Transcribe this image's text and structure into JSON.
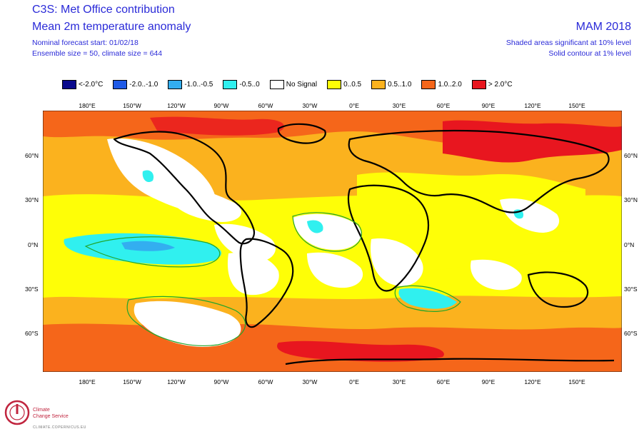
{
  "header": {
    "title": "C3S: Met Office contribution",
    "subtitle": "Mean 2m temperature anomaly",
    "forecast_start": "Nominal forecast start: 01/02/18",
    "ensemble": "Ensemble size = 50, climate size = 644",
    "season": "MAM 2018",
    "shaded_note": "Shaded areas significant at 10% level",
    "contour_note": "Solid contour at 1% level"
  },
  "legend": [
    {
      "label": "<-2.0°C",
      "color": "#0a0a8c"
    },
    {
      "label": "-2.0..-1.0",
      "color": "#1f5ae6"
    },
    {
      "label": "-1.0..-0.5",
      "color": "#33aef0"
    },
    {
      "label": "-0.5..0",
      "color": "#30f0ef"
    },
    {
      "label": "No Signal",
      "color": "#ffffff"
    },
    {
      "label": "0..0.5",
      "color": "#fefe07"
    },
    {
      "label": "0.5..1.0",
      "color": "#fbb21e"
    },
    {
      "label": "1.0..2.0",
      "color": "#f5661a"
    },
    {
      "label": "> 2.0°C",
      "color": "#e8161f"
    }
  ],
  "longitudes": [
    "180°E",
    "150°W",
    "120°W",
    "90°W",
    "60°W",
    "30°W",
    "0°E",
    "30°E",
    "60°E",
    "90°E",
    "120°E",
    "150°E"
  ],
  "latitudes": [
    "60°N",
    "30°N",
    "0°N",
    "30°S",
    "60°S"
  ],
  "logo": {
    "line1": "Climate",
    "line2": "Change Service",
    "line3": "CLIMATE.COPERNICUS.EU"
  }
}
